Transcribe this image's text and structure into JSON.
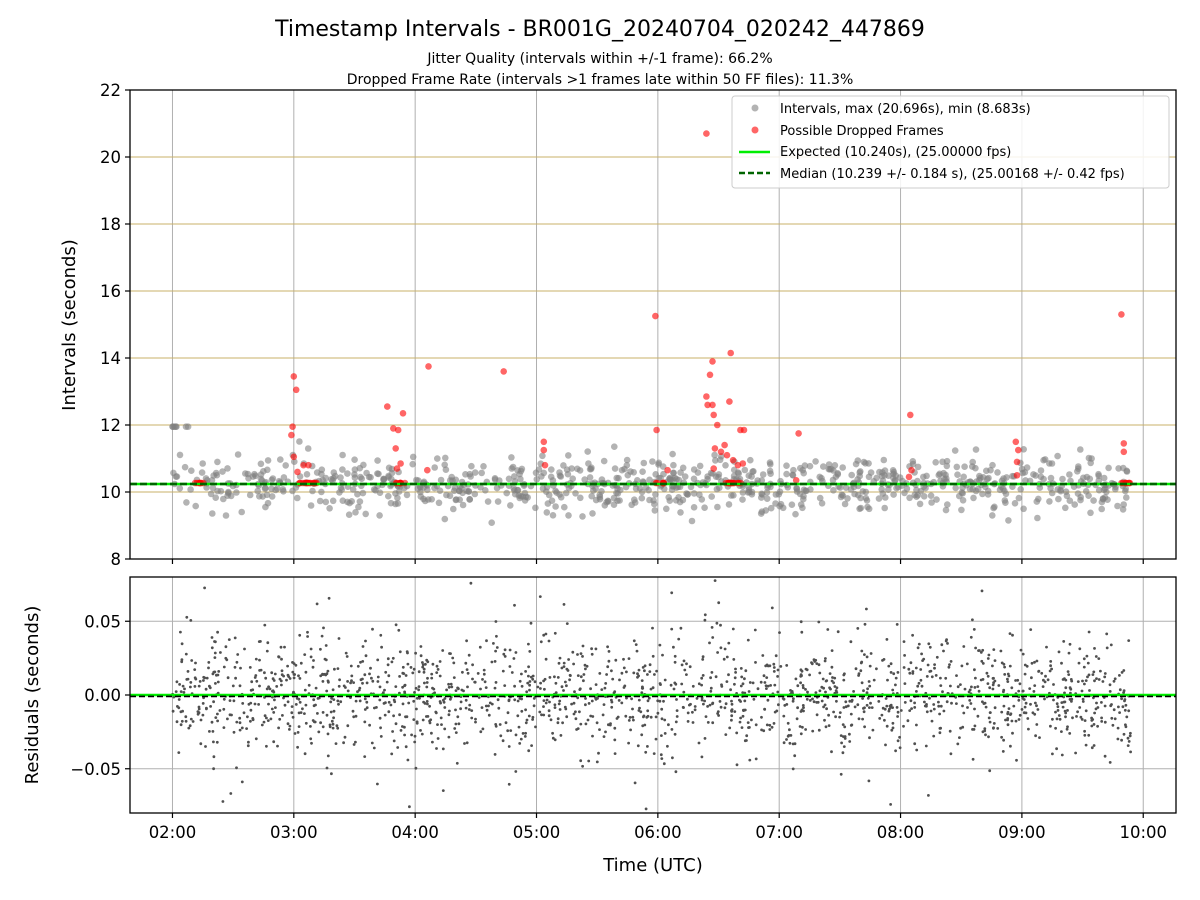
{
  "chart_data": {
    "title": "Timestamp Intervals - BR001G_20240704_020242_447869",
    "subtitle_1": "Jitter Quality (intervals within +/-1 frame): 66.2%",
    "subtitle_2": "Dropped Frame Rate (intervals >1 frames late within 50 FF files): 11.3%",
    "xlabel": "Time (UTC)",
    "x_tick_labels": [
      "02:00",
      "03:00",
      "04:00",
      "05:00",
      "06:00",
      "07:00",
      "08:00",
      "09:00",
      "10:00"
    ],
    "x_tick_hours": [
      2,
      3,
      4,
      5,
      6,
      7,
      8,
      9,
      10
    ],
    "xlim_hours": [
      1.65,
      10.27
    ],
    "colors": {
      "intervals": "#808080",
      "dropped": "#ff0000",
      "expected": "#00ee00",
      "median": "#006400",
      "residuals": "#505050",
      "hgrid_top": "#c8b06a",
      "grid": "#b0b0b0"
    },
    "charts": [
      {
        "type": "scatter",
        "ylabel": "Intervals (seconds)",
        "ylim": [
          8,
          22
        ],
        "y_ticks": [
          8,
          10,
          12,
          14,
          16,
          18,
          20,
          22
        ],
        "y_tick_labels": [
          "8",
          "10",
          "12",
          "14",
          "16",
          "18",
          "20",
          "22"
        ],
        "legend_position": "top-right",
        "legend": [
          "Intervals, max (20.696s), min (8.683s)",
          "Possible Dropped Frames",
          "Expected (10.240s), (25.00000 fps)",
          "Median (10.239 +/- 0.184 s), (25.00168 +/- 0.42 fps)"
        ],
        "expected_value": 10.24,
        "median_value": 10.239,
        "intervals_max": 20.696,
        "intervals_min": 8.683,
        "point_count_approx": 2700,
        "note_points": "dense scatter concentrated between ~9 and ~11.8 s across 02:00–09:53",
        "dropped_frames": [
          {
            "t": 3.0,
            "v": 13.45
          },
          {
            "t": 3.02,
            "v": 13.05
          },
          {
            "t": 2.99,
            "v": 11.95
          },
          {
            "t": 2.98,
            "v": 11.7
          },
          {
            "t": 3.0,
            "v": 11.05
          },
          {
            "t": 3.03,
            "v": 10.6
          },
          {
            "t": 3.08,
            "v": 10.8
          },
          {
            "t": 3.12,
            "v": 10.8
          },
          {
            "t": 3.77,
            "v": 12.55
          },
          {
            "t": 3.82,
            "v": 11.9
          },
          {
            "t": 3.86,
            "v": 11.85
          },
          {
            "t": 3.9,
            "v": 12.35
          },
          {
            "t": 3.84,
            "v": 11.3
          },
          {
            "t": 3.88,
            "v": 10.85
          },
          {
            "t": 3.85,
            "v": 10.7
          },
          {
            "t": 4.11,
            "v": 13.75
          },
          {
            "t": 4.1,
            "v": 10.65
          },
          {
            "t": 4.73,
            "v": 13.6
          },
          {
            "t": 5.06,
            "v": 11.5
          },
          {
            "t": 5.06,
            "v": 11.25
          },
          {
            "t": 5.07,
            "v": 10.8
          },
          {
            "t": 5.98,
            "v": 15.25
          },
          {
            "t": 5.99,
            "v": 11.85
          },
          {
            "t": 6.08,
            "v": 10.65
          },
          {
            "t": 6.4,
            "v": 20.7
          },
          {
            "t": 6.4,
            "v": 12.85
          },
          {
            "t": 6.43,
            "v": 13.5
          },
          {
            "t": 6.45,
            "v": 13.9
          },
          {
            "t": 6.41,
            "v": 12.6
          },
          {
            "t": 6.45,
            "v": 12.6
          },
          {
            "t": 6.46,
            "v": 12.3
          },
          {
            "t": 6.49,
            "v": 12.0
          },
          {
            "t": 6.6,
            "v": 14.15
          },
          {
            "t": 6.59,
            "v": 12.7
          },
          {
            "t": 6.68,
            "v": 11.85
          },
          {
            "t": 6.71,
            "v": 11.85
          },
          {
            "t": 6.47,
            "v": 11.3
          },
          {
            "t": 6.52,
            "v": 11.2
          },
          {
            "t": 6.55,
            "v": 11.4
          },
          {
            "t": 6.57,
            "v": 11.1
          },
          {
            "t": 6.62,
            "v": 10.95
          },
          {
            "t": 6.7,
            "v": 10.85
          },
          {
            "t": 6.46,
            "v": 10.7
          },
          {
            "t": 6.66,
            "v": 10.8
          },
          {
            "t": 7.16,
            "v": 11.75
          },
          {
            "t": 7.14,
            "v": 10.35
          },
          {
            "t": 8.08,
            "v": 12.3
          },
          {
            "t": 8.09,
            "v": 10.65
          },
          {
            "t": 8.07,
            "v": 10.45
          },
          {
            "t": 8.95,
            "v": 11.5
          },
          {
            "t": 8.97,
            "v": 11.25
          },
          {
            "t": 8.96,
            "v": 10.9
          },
          {
            "t": 8.96,
            "v": 10.5
          },
          {
            "t": 9.82,
            "v": 15.3
          },
          {
            "t": 9.84,
            "v": 11.45
          },
          {
            "t": 9.84,
            "v": 11.2
          },
          {
            "t": 2.22,
            "v": 10.27
          },
          {
            "t": 3.1,
            "v": 10.27
          },
          {
            "t": 3.88,
            "v": 10.27
          },
          {
            "t": 6.05,
            "v": 10.27
          },
          {
            "t": 6.6,
            "v": 10.27
          },
          {
            "t": 9.88,
            "v": 10.27
          }
        ]
      },
      {
        "type": "scatter",
        "ylabel": "Residuals (seconds)",
        "ylim": [
          -0.08,
          0.08
        ],
        "y_ticks": [
          -0.05,
          0.0,
          0.05
        ],
        "y_tick_labels": [
          "−0.05",
          "0.00",
          "0.05"
        ],
        "expected_value": 0.0,
        "median_value": -0.001,
        "point_count_approx": 2700,
        "note_points": "residuals spread roughly uniformly between −0.08 and 0.08 s"
      }
    ]
  }
}
